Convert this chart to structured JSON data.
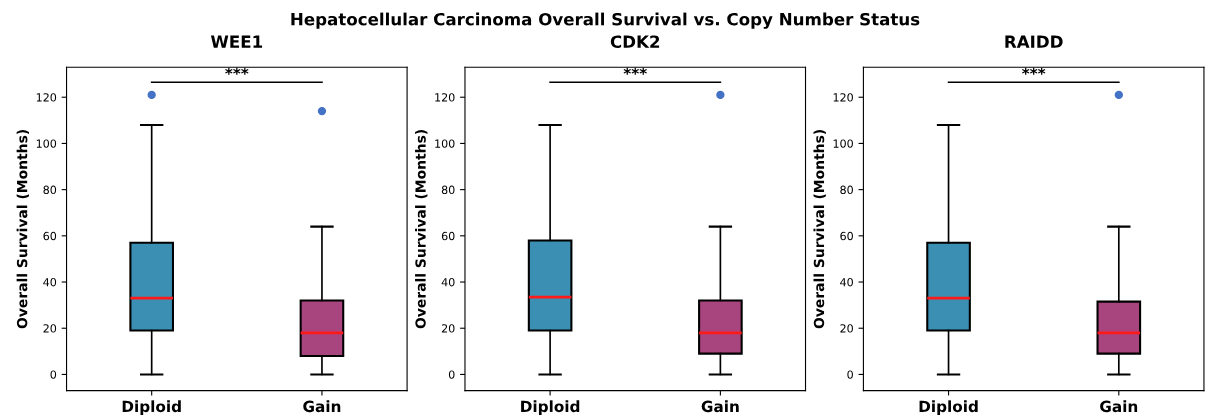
{
  "chart_data": [
    {
      "type": "box",
      "title": "WEE1",
      "ylabel": "Overall Survival (Months)",
      "categories": [
        "Diploid",
        "Gain"
      ],
      "colors": [
        "#3b8fb3",
        "#a9457e"
      ],
      "boxes": [
        {
          "low": 0,
          "q1": 19,
          "median": 33,
          "q3": 57,
          "high": 108,
          "outliers": [
            121
          ]
        },
        {
          "low": 0,
          "q1": 8,
          "median": 18,
          "q3": 32,
          "high": 64,
          "outliers": [
            114
          ]
        }
      ],
      "ylim": [
        -7,
        133
      ],
      "yticks": [
        0,
        20,
        40,
        60,
        80,
        100,
        120
      ],
      "grid": false,
      "annotations": [
        "Hepatocellular Carcinoma Overall Survival vs. Copy Number Status",
        "***"
      ]
    },
    {
      "type": "box",
      "title": "CDK2",
      "ylabel": "Overall Survival (Months)",
      "categories": [
        "Diploid",
        "Gain"
      ],
      "colors": [
        "#3b8fb3",
        "#a9457e"
      ],
      "boxes": [
        {
          "low": 0,
          "q1": 19,
          "median": 33.5,
          "q3": 58,
          "high": 108
        },
        {
          "low": 0,
          "q1": 9,
          "median": 18,
          "q3": 32,
          "high": 64,
          "outliers": [
            121
          ]
        }
      ],
      "ylim": [
        -7,
        133
      ],
      "yticks": [
        0,
        20,
        40,
        60,
        80,
        100,
        120
      ],
      "grid": false,
      "annotations": [
        "***"
      ]
    },
    {
      "type": "box",
      "title": "RAIDD",
      "ylabel": "Overall Survival (Months)",
      "categories": [
        "Diploid",
        "Gain"
      ],
      "colors": [
        "#3b8fb3",
        "#a9457e"
      ],
      "boxes": [
        {
          "low": 0,
          "q1": 19,
          "median": 33,
          "q3": 57,
          "high": 108
        },
        {
          "low": 0,
          "q1": 9,
          "median": 18,
          "q3": 31.5,
          "high": 64,
          "outliers": [
            121
          ]
        }
      ],
      "ylim": [
        -7,
        133
      ],
      "yticks": [
        0,
        20,
        40,
        60,
        80,
        100,
        120
      ],
      "grid": false,
      "annotations": [
        "***"
      ]
    }
  ]
}
